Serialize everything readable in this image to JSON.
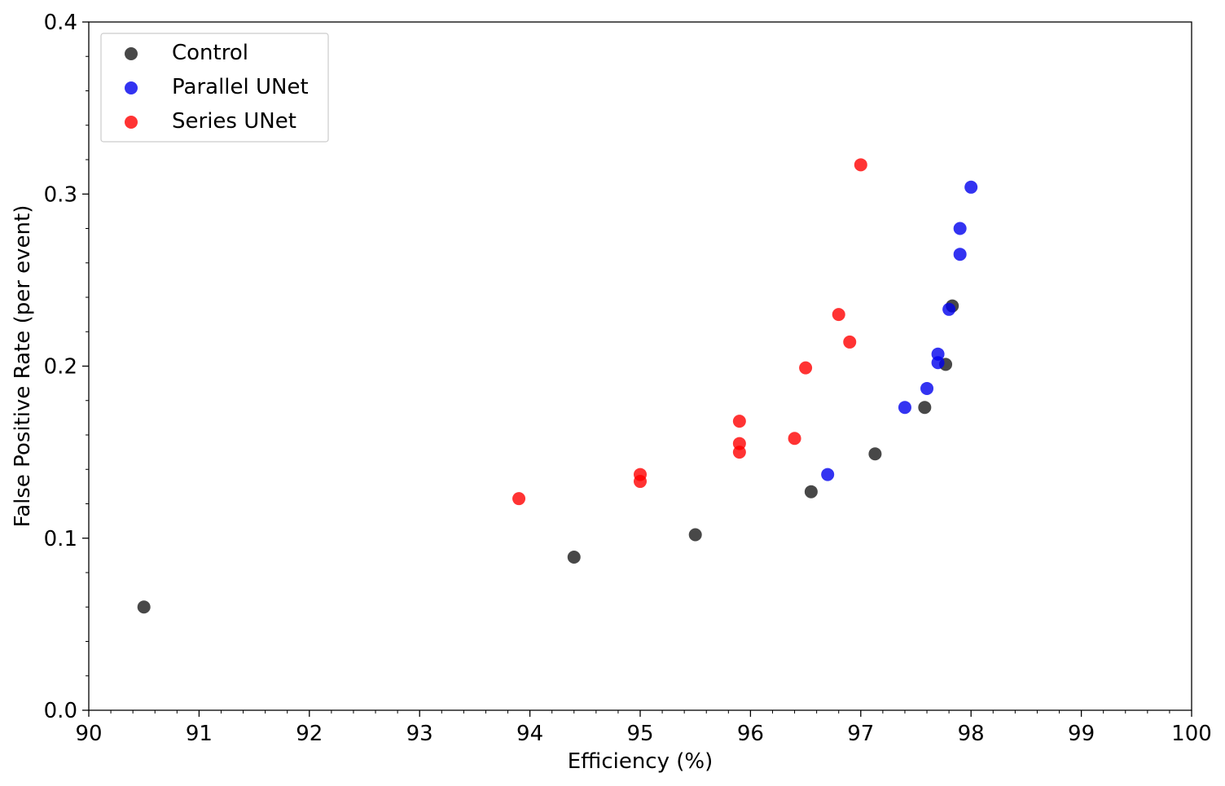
{
  "chart_data": {
    "type": "scatter",
    "title": "",
    "xlabel": "Efficiency (%)",
    "ylabel": "False Positive Rate (per event)",
    "xlim": [
      90,
      100
    ],
    "ylim": [
      0.0,
      0.4
    ],
    "x_ticks": [
      "90",
      "91",
      "92",
      "93",
      "94",
      "95",
      "96",
      "97",
      "98",
      "99",
      "100"
    ],
    "y_ticks": [
      "0.0",
      "0.1",
      "0.2",
      "0.3",
      "0.4"
    ],
    "grid": false,
    "legend_position": "top-left",
    "series": [
      {
        "name": "Control",
        "color": "#1a1a1a",
        "points": [
          [
            90.5,
            0.06
          ],
          [
            94.4,
            0.089
          ],
          [
            95.5,
            0.102
          ],
          [
            96.55,
            0.127
          ],
          [
            97.13,
            0.149
          ],
          [
            97.58,
            0.176
          ],
          [
            97.77,
            0.201
          ],
          [
            97.83,
            0.235
          ]
        ]
      },
      {
        "name": "Parallel UNet",
        "color": "#0000ee",
        "points": [
          [
            96.7,
            0.137
          ],
          [
            97.4,
            0.176
          ],
          [
            97.6,
            0.187
          ],
          [
            97.7,
            0.202
          ],
          [
            97.7,
            0.207
          ],
          [
            97.8,
            0.233
          ],
          [
            97.9,
            0.265
          ],
          [
            97.9,
            0.28
          ],
          [
            98.0,
            0.304
          ]
        ]
      },
      {
        "name": "Series UNet",
        "color": "#ff0000",
        "points": [
          [
            93.9,
            0.123
          ],
          [
            95.0,
            0.133
          ],
          [
            95.0,
            0.137
          ],
          [
            95.9,
            0.15
          ],
          [
            95.9,
            0.155
          ],
          [
            95.9,
            0.168
          ],
          [
            96.4,
            0.158
          ],
          [
            96.5,
            0.199
          ],
          [
            96.8,
            0.23
          ],
          [
            96.9,
            0.214
          ],
          [
            97.0,
            0.317
          ]
        ]
      }
    ]
  }
}
